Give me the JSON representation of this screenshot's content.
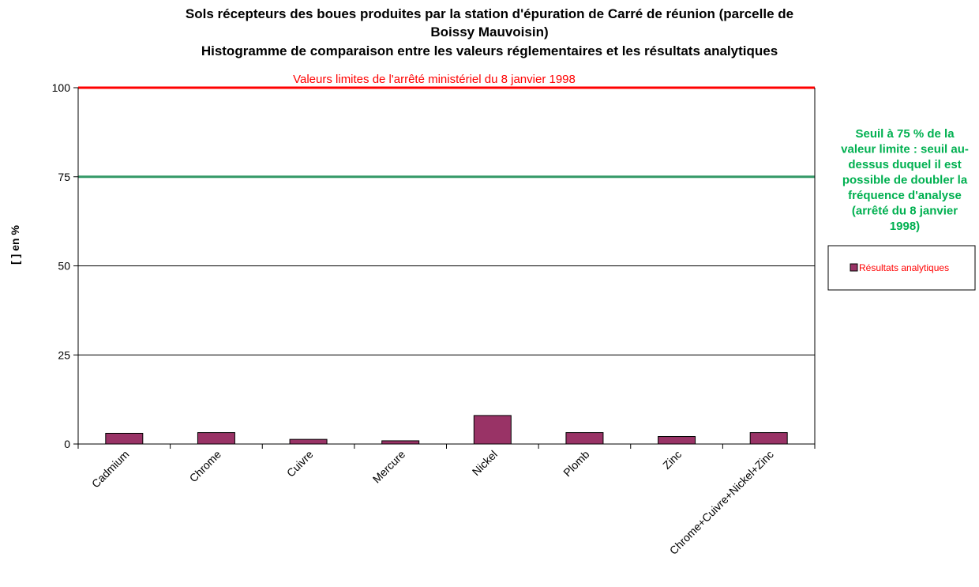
{
  "chart_data": {
    "type": "bar",
    "title_lines": [
      "Sols récepteurs des boues produites par la station d'épuration de Carré de réunion (parcelle de",
      "Boissy Mauvoisin)",
      "Histogramme de comparaison entre les valeurs réglementaires et les résultats analytiques"
    ],
    "ylabel": "[ ] en %",
    "ylim": [
      0,
      100
    ],
    "yticks": [
      "0",
      "25",
      "50",
      "75",
      "100"
    ],
    "grid": true,
    "categories": [
      "Cadmium",
      "Chrome",
      "Cuivre",
      "Mercure",
      "Nickel",
      "Plomb",
      "Zinc",
      "Chrome+Cuivre+Nickel+Zinc"
    ],
    "series": [
      {
        "name": "Résultats analytiques",
        "values": [
          3.0,
          3.2,
          1.3,
          0.9,
          8.0,
          3.2,
          2.1,
          3.2
        ]
      }
    ],
    "reference_lines": {
      "limit": {
        "value": 100,
        "label": "Valeurs limites de l'arrêté ministériel du 8 janvier 1998"
      },
      "threshold": {
        "value": 75,
        "label_lines": [
          "Seuil à 75 % de la",
          "valeur limite : seuil au-",
          "dessus duquel il est",
          "possible de doubler la",
          "fréquence d'analyse",
          "(arrêté du 8 janvier",
          "1998)"
        ]
      }
    },
    "legend_placement": "right",
    "colors": {
      "bar": "#993366",
      "limit_line": "#ff0000",
      "threshold_line": "#339966",
      "threshold_text": "#00b050",
      "limit_text": "#ff0000",
      "legend_text": "#ff0000",
      "grid": "#000000"
    }
  }
}
